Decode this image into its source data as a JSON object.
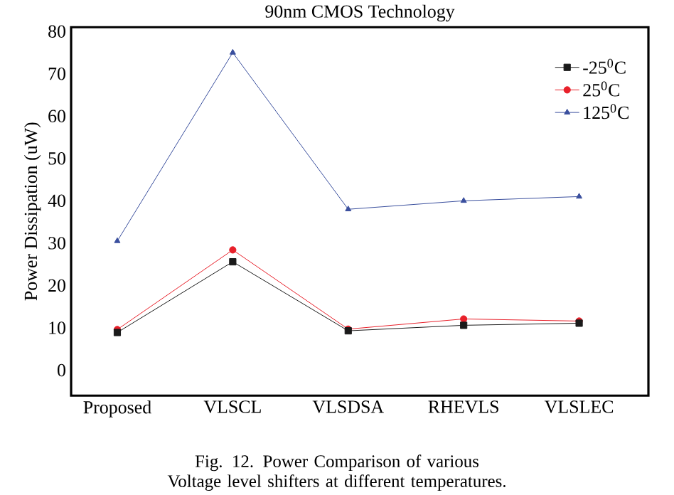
{
  "chart_data": {
    "type": "line",
    "title": "90nm CMOS Technology",
    "ylabel": "Power Dissipation (uW)",
    "categories": [
      "Proposed",
      "VLSCL",
      "VLSDSA",
      "RHEVLS",
      "VLSLEC"
    ],
    "series": [
      {
        "name": "-25$^{0}$C",
        "color": "#1a1a1a",
        "marker": "square",
        "values": [
          8.9,
          25.6,
          9.3,
          10.6,
          11.1
        ]
      },
      {
        "name": "25$^{0}$C",
        "color": "#e8202a",
        "marker": "circle",
        "values": [
          9.6,
          28.4,
          9.7,
          12.1,
          11.6
        ]
      },
      {
        "name": "125$^{0}$C",
        "color": "#3a4f9e",
        "marker": "triangle",
        "values": [
          30.5,
          75,
          38,
          40,
          41
        ]
      }
    ],
    "ylim": [
      -6,
      81
    ],
    "yticks": [
      0,
      10,
      20,
      30,
      40,
      50,
      60,
      70,
      80
    ],
    "legend": "top right",
    "grid": false,
    "line_style": "solid",
    "annotations": [
      "Fig. 12. Power Comparison of various Voltage level shifters at different temperatures."
    ]
  }
}
